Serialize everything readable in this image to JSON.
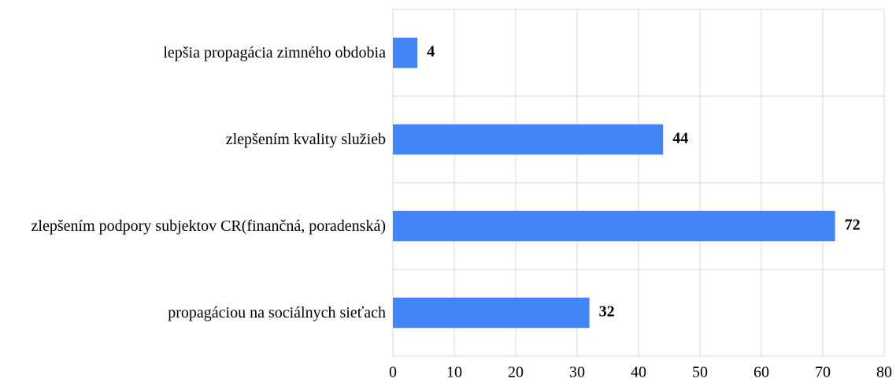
{
  "chart_data": {
    "type": "bar",
    "orientation": "horizontal",
    "categories": [
      "lepšia propagácia zimného obdobia",
      "zlepšením kvality služieb",
      "zlepšením podpory subjektov CR(finančná, poradenská)",
      "propagáciou na sociálnych sieťach"
    ],
    "values": [
      4,
      44,
      72,
      32
    ],
    "color": "#4285f4",
    "xlim": [
      0,
      80
    ],
    "xticks": [
      0,
      10,
      20,
      30,
      40,
      50,
      60,
      70,
      80
    ],
    "grid": true
  }
}
